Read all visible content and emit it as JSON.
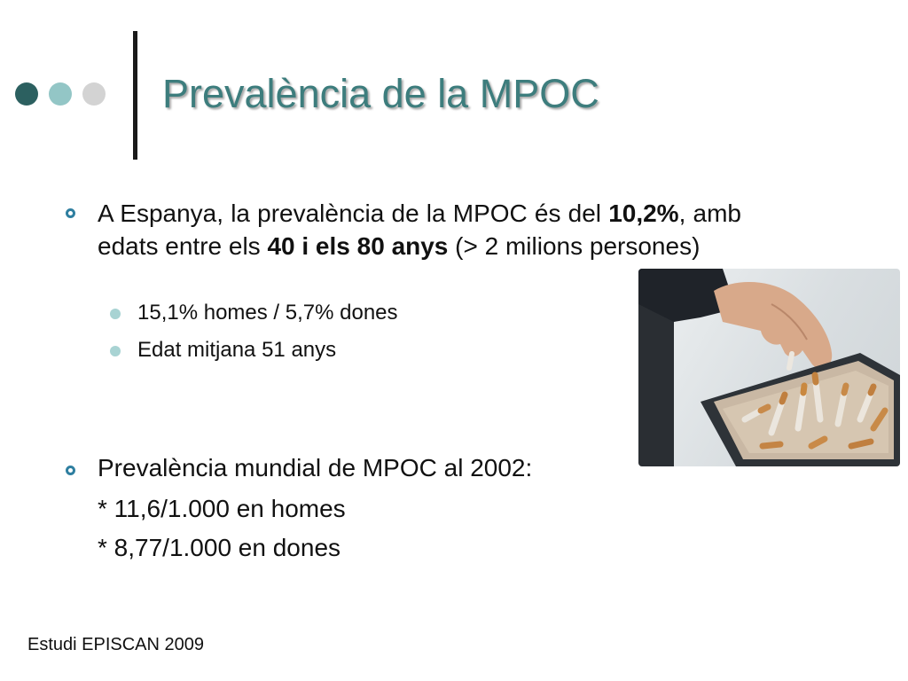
{
  "slide": {
    "title": "Prevalència de la MPOC",
    "accent_color": "#3d7d7d",
    "decor_dot_colors": [
      "#2c6060",
      "#93c6c6",
      "#d3d3d3"
    ]
  },
  "bullet1": {
    "part1": "A Espanya, la prevalència de la MPOC és del ",
    "bold1": "10,2%",
    "part2": ", amb edats entre els ",
    "bold2": "40 i els 80 anys",
    "part3": " (> 2 milions persones)",
    "subitems": [
      "15,1% homes / 5,7% dones",
      "Edat mitjana 51 anys"
    ]
  },
  "bullet2": {
    "text": "Prevalència mundial de MPOC al 2002:",
    "lines": [
      "* 11,6/1.000 en homes",
      "* 8,77/1.000 en dones"
    ]
  },
  "footer": {
    "source": "Estudi EPISCAN 2009"
  },
  "image": {
    "icon": "photo-hand-stubbing-cigarette-in-ashtray"
  }
}
